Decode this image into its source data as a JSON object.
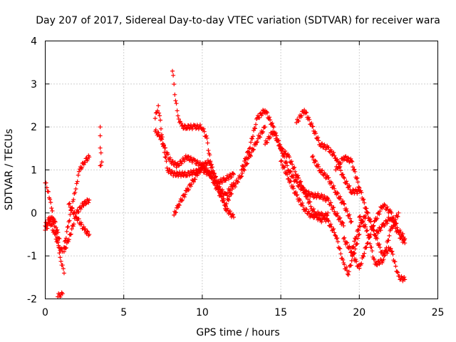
{
  "chart_data": {
    "type": "scatter",
    "title": "Day 207 of 2017, Sidereal Day-to-day VTEC variation (SDTVAR) for receiver wara",
    "xlabel": "GPS time / hours",
    "ylabel": "SDTVAR / TECUs",
    "xlim": [
      0,
      25
    ],
    "ylim": [
      -2,
      4
    ],
    "xticks": [
      0,
      5,
      10,
      15,
      20,
      25
    ],
    "yticks": [
      -2,
      -1,
      0,
      1,
      2,
      3,
      4
    ],
    "xtick_labels": [
      "0",
      "5",
      "10",
      "15",
      "20",
      "25"
    ],
    "ytick_labels": [
      "-2",
      "-1",
      "0",
      "1",
      "2",
      "3",
      "4"
    ],
    "grid": true,
    "marker": "+",
    "color": "#ff0000",
    "series": [
      {
        "name": "s1",
        "x": [
          0.0,
          0.2,
          0.4,
          0.6,
          0.8,
          1.0,
          1.2
        ],
        "y": [
          0.7,
          0.5,
          0.1,
          -0.3,
          -0.7,
          -1.1,
          -1.4
        ]
      },
      {
        "name": "s2",
        "x": [
          0.0,
          0.3,
          0.6,
          0.9,
          1.1
        ],
        "y": [
          -0.4,
          -0.2,
          -0.5,
          -0.8,
          -0.9
        ]
      },
      {
        "name": "s3",
        "x": [
          0.0,
          0.3,
          0.6,
          0.9
        ],
        "y": [
          -0.3,
          -0.1,
          -0.2,
          -0.6
        ]
      },
      {
        "name": "s4",
        "x": [
          0.8,
          0.9,
          1.0,
          1.1
        ],
        "y": [
          -1.95,
          -1.9,
          -1.92,
          -1.88
        ]
      },
      {
        "name": "s5",
        "x": [
          1.2,
          1.5,
          1.8,
          2.0,
          2.2,
          2.5,
          2.8
        ],
        "y": [
          -0.8,
          -0.2,
          0.3,
          0.7,
          1.0,
          1.2,
          1.3
        ]
      },
      {
        "name": "s6",
        "x": [
          1.2,
          1.6,
          2.0,
          2.4,
          2.8
        ],
        "y": [
          -0.9,
          -0.5,
          0.0,
          0.2,
          0.3
        ]
      },
      {
        "name": "s7",
        "x": [
          1.5,
          2.0,
          2.5,
          2.8
        ],
        "y": [
          0.2,
          -0.1,
          -0.4,
          -0.5
        ]
      },
      {
        "name": "s8",
        "x": [
          3.5,
          3.5,
          3.5,
          3.6,
          3.5
        ],
        "y": [
          2.0,
          1.8,
          1.5,
          1.2,
          1.1
        ]
      },
      {
        "name": "s9",
        "x": [
          7.0,
          7.2,
          7.5,
          7.8,
          8.2,
          9.0,
          10.0,
          10.5,
          11.0,
          11.5,
          12.0,
          12.5,
          13.0,
          13.5,
          14.0
        ],
        "y": [
          2.2,
          2.5,
          1.6,
          1.0,
          0.9,
          0.9,
          1.0,
          0.9,
          0.5,
          0.2,
          0.6,
          0.9,
          1.3,
          1.7,
          2.0
        ]
      },
      {
        "name": "s10",
        "x": [
          7.0,
          7.3,
          7.6,
          8.0,
          8.4,
          9.0,
          9.5,
          10.0,
          10.5,
          11.0,
          11.5,
          12.0
        ],
        "y": [
          1.9,
          1.8,
          1.5,
          1.2,
          1.1,
          1.3,
          1.2,
          1.1,
          0.9,
          0.6,
          0.4,
          0.7
        ]
      },
      {
        "name": "s11",
        "x": [
          8.1,
          8.2,
          8.3,
          8.5,
          8.7,
          9.0,
          9.5,
          10.0,
          10.3,
          10.6,
          11.0,
          11.5,
          12.0
        ],
        "y": [
          3.3,
          3.0,
          2.6,
          2.2,
          2.0,
          2.0,
          2.0,
          2.0,
          1.7,
          1.0,
          0.7,
          0.8,
          0.9
        ]
      },
      {
        "name": "s12",
        "x": [
          8.2,
          8.5,
          9.0,
          9.5,
          10.0,
          10.5,
          11.0,
          11.5,
          12.0
        ],
        "y": [
          -0.05,
          0.2,
          0.5,
          0.8,
          1.1,
          1.2,
          0.6,
          0.1,
          -0.1
        ]
      },
      {
        "name": "s13",
        "x": [
          12.5,
          13.0,
          13.5,
          14.0,
          14.5,
          15.0,
          15.5,
          16.0,
          16.5,
          17.0,
          17.5,
          18.0
        ],
        "y": [
          1.0,
          1.5,
          2.2,
          2.4,
          2.0,
          1.5,
          1.3,
          0.9,
          0.5,
          0.1,
          -0.2,
          0.0
        ]
      },
      {
        "name": "s14",
        "x": [
          14.0,
          14.5,
          15.0,
          15.5,
          16.0,
          16.5,
          17.0,
          17.5,
          18.0,
          18.5,
          19.0
        ],
        "y": [
          1.6,
          1.9,
          1.5,
          1.0,
          0.7,
          0.5,
          0.4,
          0.4,
          0.3,
          0.0,
          -0.3
        ]
      },
      {
        "name": "s15",
        "x": [
          16.0,
          16.5,
          17.0,
          17.5,
          18.0,
          18.5,
          19.0,
          19.5,
          20.0
        ],
        "y": [
          2.1,
          2.4,
          2.0,
          1.6,
          1.5,
          1.3,
          0.8,
          0.5,
          0.5
        ]
      },
      {
        "name": "s16",
        "x": [
          15.0,
          15.5,
          16.0,
          16.5,
          17.0,
          17.5,
          18.0,
          18.5,
          19.0,
          19.3,
          19.6,
          20.0
        ],
        "y": [
          1.2,
          0.8,
          0.4,
          0.1,
          -0.1,
          0.0,
          -0.2,
          -0.5,
          -1.2,
          -1.4,
          -1.0,
          -0.5
        ]
      },
      {
        "name": "s17",
        "x": [
          17.0,
          17.5,
          18.0,
          18.5,
          19.0,
          19.5
        ],
        "y": [
          1.3,
          1.0,
          0.8,
          0.5,
          0.2,
          -0.2
        ]
      },
      {
        "name": "s18",
        "x": [
          18.5,
          19.0,
          19.5,
          20.0,
          20.5,
          21.0,
          21.5,
          22.0,
          22.5,
          22.9
        ],
        "y": [
          1.0,
          1.3,
          1.2,
          0.6,
          0.0,
          -0.5,
          -0.3,
          -0.1,
          -0.5,
          -0.7
        ]
      },
      {
        "name": "s19",
        "x": [
          19.5,
          20.0,
          20.5,
          21.0,
          21.5,
          22.0,
          22.5,
          22.9
        ],
        "y": [
          -0.9,
          -0.3,
          0.0,
          -0.5,
          -1.0,
          -0.8,
          -1.5,
          -1.55
        ]
      },
      {
        "name": "s20",
        "x": [
          20.0,
          20.5,
          21.0,
          21.5,
          22.0,
          22.5
        ],
        "y": [
          -0.1,
          -0.4,
          -1.2,
          -1.1,
          -0.4,
          0.0
        ]
      },
      {
        "name": "s21",
        "x": [
          19.0,
          19.5,
          20.0,
          20.5,
          21.0,
          21.5,
          22.0,
          22.5,
          22.9
        ],
        "y": [
          -0.6,
          -0.9,
          -1.3,
          -0.7,
          -0.2,
          0.2,
          0.0,
          -0.4,
          -0.6
        ]
      }
    ]
  }
}
